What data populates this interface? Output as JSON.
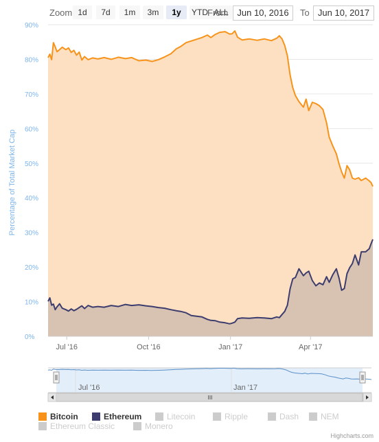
{
  "toolbar": {
    "zoom_label": "Zoom",
    "buttons": [
      "1d",
      "7d",
      "1m",
      "3m",
      "1y",
      "YTD",
      "ALL"
    ],
    "active": "1y",
    "from_label": "From",
    "from_value": "Jun 10, 2016",
    "to_label": "To",
    "to_value": "Jun 10, 2017"
  },
  "chart_data": {
    "type": "area",
    "ylabel": "Percentage of Total Market Cap",
    "ylim": [
      0,
      90
    ],
    "yticks": [
      "0%",
      "10%",
      "20%",
      "30%",
      "40%",
      "50%",
      "60%",
      "70%",
      "80%",
      "90%"
    ],
    "xticks": [
      "Jul '16",
      "Oct '16",
      "Jan '17",
      "Apr '17"
    ],
    "x_range": [
      "2016-06-10",
      "2017-06-10"
    ],
    "grid": true,
    "series": [
      {
        "name": "Bitcoin",
        "color": "#f7931a",
        "fill": "#fce0c1",
        "visible": true,
        "points": [
          [
            "2016-06-10",
            80.5
          ],
          [
            "2016-06-12",
            81.5
          ],
          [
            "2016-06-14",
            79.9
          ],
          [
            "2016-06-16",
            84.8
          ],
          [
            "2016-06-18",
            83.6
          ],
          [
            "2016-06-20",
            82.2
          ],
          [
            "2016-06-23",
            82.8
          ],
          [
            "2016-06-26",
            83.5
          ],
          [
            "2016-06-30",
            82.8
          ],
          [
            "2016-07-03",
            83.3
          ],
          [
            "2016-07-06",
            82.0
          ],
          [
            "2016-07-09",
            82.6
          ],
          [
            "2016-07-12",
            81.2
          ],
          [
            "2016-07-15",
            82.1
          ],
          [
            "2016-07-18",
            79.8
          ],
          [
            "2016-07-21",
            80.8
          ],
          [
            "2016-07-25",
            79.9
          ],
          [
            "2016-07-30",
            80.4
          ],
          [
            "2016-08-05",
            80.1
          ],
          [
            "2016-08-12",
            80.5
          ],
          [
            "2016-08-20",
            80.0
          ],
          [
            "2016-08-28",
            80.6
          ],
          [
            "2016-09-05",
            80.2
          ],
          [
            "2016-09-12",
            80.5
          ],
          [
            "2016-09-20",
            79.6
          ],
          [
            "2016-09-28",
            79.8
          ],
          [
            "2016-10-05",
            79.4
          ],
          [
            "2016-10-12",
            79.9
          ],
          [
            "2016-10-19",
            80.7
          ],
          [
            "2016-10-26",
            81.6
          ],
          [
            "2016-11-01",
            83.0
          ],
          [
            "2016-11-06",
            83.7
          ],
          [
            "2016-11-12",
            84.8
          ],
          [
            "2016-11-18",
            85.3
          ],
          [
            "2016-11-24",
            85.8
          ],
          [
            "2016-11-30",
            86.3
          ],
          [
            "2016-12-06",
            87.0
          ],
          [
            "2016-12-10",
            86.3
          ],
          [
            "2016-12-15",
            87.2
          ],
          [
            "2016-12-20",
            87.8
          ],
          [
            "2016-12-26",
            88.0
          ],
          [
            "2016-12-31",
            87.3
          ],
          [
            "2017-01-03",
            87.4
          ],
          [
            "2017-01-06",
            88.2
          ],
          [
            "2017-01-09",
            86.4
          ],
          [
            "2017-01-14",
            85.6
          ],
          [
            "2017-01-22",
            85.9
          ],
          [
            "2017-01-31",
            85.5
          ],
          [
            "2017-02-08",
            85.9
          ],
          [
            "2017-02-16",
            85.4
          ],
          [
            "2017-02-22",
            86.1
          ],
          [
            "2017-02-25",
            86.8
          ],
          [
            "2017-02-28",
            85.9
          ],
          [
            "2017-03-03",
            84.0
          ],
          [
            "2017-03-06",
            81.0
          ],
          [
            "2017-03-09",
            75.5
          ],
          [
            "2017-03-12",
            71.8
          ],
          [
            "2017-03-15",
            69.5
          ],
          [
            "2017-03-19",
            67.8
          ],
          [
            "2017-03-24",
            66.2
          ],
          [
            "2017-03-27",
            68.5
          ],
          [
            "2017-03-30",
            65.2
          ],
          [
            "2017-04-03",
            67.6
          ],
          [
            "2017-04-07",
            67.2
          ],
          [
            "2017-04-11",
            66.6
          ],
          [
            "2017-04-15",
            65.5
          ],
          [
            "2017-04-19",
            61.7
          ],
          [
            "2017-04-22",
            57.5
          ],
          [
            "2017-04-26",
            55.0
          ],
          [
            "2017-04-30",
            52.7
          ],
          [
            "2017-05-03",
            49.8
          ],
          [
            "2017-05-06",
            47.5
          ],
          [
            "2017-05-09",
            45.7
          ],
          [
            "2017-05-12",
            49.3
          ],
          [
            "2017-05-15",
            48.1
          ],
          [
            "2017-05-18",
            45.7
          ],
          [
            "2017-05-21",
            45.4
          ],
          [
            "2017-05-25",
            45.8
          ],
          [
            "2017-05-28",
            45.0
          ],
          [
            "2017-06-02",
            45.7
          ],
          [
            "2017-06-06",
            44.9
          ],
          [
            "2017-06-08",
            44.4
          ],
          [
            "2017-06-10",
            43.3
          ]
        ]
      },
      {
        "name": "Ethereum",
        "color": "#3c3c6e",
        "fill": "#d8c3b3",
        "visible": true,
        "points": [
          [
            "2016-06-10",
            10.1
          ],
          [
            "2016-06-12",
            11.1
          ],
          [
            "2016-06-14",
            9.0
          ],
          [
            "2016-06-16",
            9.3
          ],
          [
            "2016-06-18",
            7.7
          ],
          [
            "2016-06-20",
            8.5
          ],
          [
            "2016-06-23",
            9.4
          ],
          [
            "2016-06-26",
            8.1
          ],
          [
            "2016-06-30",
            7.7
          ],
          [
            "2016-07-03",
            7.3
          ],
          [
            "2016-07-06",
            7.9
          ],
          [
            "2016-07-09",
            7.4
          ],
          [
            "2016-07-12",
            7.8
          ],
          [
            "2016-07-15",
            8.3
          ],
          [
            "2016-07-18",
            8.8
          ],
          [
            "2016-07-21",
            8.0
          ],
          [
            "2016-07-25",
            8.9
          ],
          [
            "2016-07-30",
            8.4
          ],
          [
            "2016-08-05",
            8.6
          ],
          [
            "2016-08-12",
            8.4
          ],
          [
            "2016-08-20",
            8.9
          ],
          [
            "2016-08-28",
            8.6
          ],
          [
            "2016-09-05",
            9.2
          ],
          [
            "2016-09-12",
            8.9
          ],
          [
            "2016-09-20",
            9.1
          ],
          [
            "2016-09-28",
            8.8
          ],
          [
            "2016-10-05",
            8.6
          ],
          [
            "2016-10-12",
            8.3
          ],
          [
            "2016-10-19",
            8.1
          ],
          [
            "2016-10-26",
            7.7
          ],
          [
            "2016-11-01",
            7.4
          ],
          [
            "2016-11-06",
            7.2
          ],
          [
            "2016-11-12",
            6.8
          ],
          [
            "2016-11-18",
            6.0
          ],
          [
            "2016-11-24",
            5.8
          ],
          [
            "2016-11-30",
            5.6
          ],
          [
            "2016-12-06",
            4.9
          ],
          [
            "2016-12-10",
            4.6
          ],
          [
            "2016-12-15",
            4.5
          ],
          [
            "2016-12-20",
            4.1
          ],
          [
            "2016-12-26",
            3.9
          ],
          [
            "2016-12-31",
            3.6
          ],
          [
            "2017-01-03",
            3.8
          ],
          [
            "2017-01-06",
            4.1
          ],
          [
            "2017-01-09",
            5.1
          ],
          [
            "2017-01-14",
            5.3
          ],
          [
            "2017-01-22",
            5.2
          ],
          [
            "2017-01-31",
            5.4
          ],
          [
            "2017-02-08",
            5.3
          ],
          [
            "2017-02-16",
            5.1
          ],
          [
            "2017-02-22",
            5.6
          ],
          [
            "2017-02-25",
            5.4
          ],
          [
            "2017-02-28",
            6.3
          ],
          [
            "2017-03-03",
            7.2
          ],
          [
            "2017-03-06",
            9.0
          ],
          [
            "2017-03-09",
            13.7
          ],
          [
            "2017-03-12",
            16.6
          ],
          [
            "2017-03-15",
            17.0
          ],
          [
            "2017-03-19",
            19.5
          ],
          [
            "2017-03-24",
            17.5
          ],
          [
            "2017-03-27",
            18.3
          ],
          [
            "2017-03-30",
            18.8
          ],
          [
            "2017-04-03",
            16.1
          ],
          [
            "2017-04-07",
            14.6
          ],
          [
            "2017-04-11",
            15.4
          ],
          [
            "2017-04-15",
            14.9
          ],
          [
            "2017-04-19",
            17.2
          ],
          [
            "2017-04-22",
            15.6
          ],
          [
            "2017-04-26",
            17.8
          ],
          [
            "2017-04-30",
            19.5
          ],
          [
            "2017-05-03",
            16.8
          ],
          [
            "2017-05-06",
            13.3
          ],
          [
            "2017-05-09",
            13.8
          ],
          [
            "2017-05-12",
            18.1
          ],
          [
            "2017-05-15",
            19.8
          ],
          [
            "2017-05-18",
            21.0
          ],
          [
            "2017-05-21",
            23.5
          ],
          [
            "2017-05-25",
            20.6
          ],
          [
            "2017-05-28",
            24.4
          ],
          [
            "2017-06-02",
            24.4
          ],
          [
            "2017-06-06",
            25.3
          ],
          [
            "2017-06-08",
            26.7
          ],
          [
            "2017-06-10",
            28.0
          ]
        ]
      },
      {
        "name": "Litecoin",
        "color": "#cccccc",
        "visible": false
      },
      {
        "name": "Ripple",
        "color": "#cccccc",
        "visible": false
      },
      {
        "name": "Dash",
        "color": "#cccccc",
        "visible": false
      },
      {
        "name": "NEM",
        "color": "#cccccc",
        "visible": false
      },
      {
        "name": "Ethereum Classic",
        "color": "#cccccc",
        "visible": false
      },
      {
        "name": "Monero",
        "color": "#cccccc",
        "visible": false
      }
    ]
  },
  "navigator": {
    "labels": [
      "Jul '16",
      "Jan '17"
    ],
    "scroll_grip": "III"
  },
  "legend": {
    "items": [
      "Bitcoin",
      "Ethereum",
      "Litecoin",
      "Ripple",
      "Dash",
      "NEM",
      "Ethereum Classic",
      "Monero"
    ]
  },
  "credit": "Highcharts.com"
}
